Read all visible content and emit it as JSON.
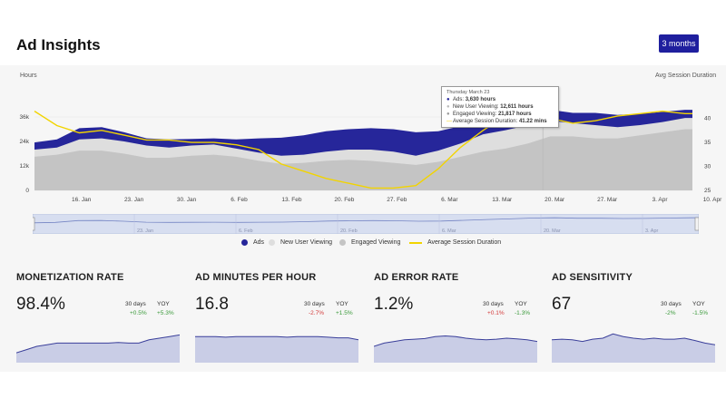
{
  "header": {
    "title": "Ad Insights",
    "range_button": "3 months"
  },
  "chart_data": {
    "type": "area",
    "ylabel_left": "Hours",
    "ylabel_right": "Avg Session Duration",
    "y_ticks_left": [
      "0",
      "12k",
      "24k",
      "36k"
    ],
    "y_ticks_right": [
      "25",
      "30",
      "35",
      "40"
    ],
    "ylim_left": [
      0,
      40000
    ],
    "ylim_right": [
      25,
      42
    ],
    "x_ticks": [
      "16. Jan",
      "23. Jan",
      "30. Jan",
      "6. Feb",
      "13. Feb",
      "20. Feb",
      "27. Feb",
      "6. Mar",
      "13. Mar",
      "20. Mar",
      "27. Mar",
      "3. Apr",
      "10. Apr"
    ],
    "x": [
      0,
      3,
      6,
      9,
      12,
      15,
      18,
      21,
      24,
      27,
      30,
      33,
      36,
      39,
      42,
      45,
      48,
      51,
      54,
      57,
      60,
      63,
      66,
      69,
      72,
      75,
      78,
      81,
      84,
      87,
      88
    ],
    "series": [
      {
        "name": "Ads",
        "color": "#26269a",
        "values": [
          23500,
          25000,
          30500,
          31000,
          28500,
          25500,
          25000,
          25200,
          25500,
          25000,
          25500,
          25800,
          27000,
          29000,
          30000,
          30500,
          30000,
          28500,
          29000,
          31500,
          34000,
          36000,
          38500,
          39500,
          38000,
          38000,
          37000,
          37500,
          38500,
          39500,
          39500
        ]
      },
      {
        "name": "New User Viewing",
        "color": "#dedede",
        "values": [
          20000,
          21000,
          25000,
          25500,
          24000,
          22000,
          21000,
          22000,
          22500,
          20500,
          18500,
          17000,
          17500,
          19000,
          20000,
          20000,
          19000,
          17000,
          19500,
          23000,
          27500,
          29500,
          32000,
          34000,
          33000,
          32000,
          31000,
          32000,
          33500,
          35500,
          35500
        ]
      },
      {
        "name": "Engaged Viewing",
        "color": "#c4c4c4",
        "values": [
          16500,
          17500,
          19500,
          19500,
          18000,
          16000,
          16000,
          17000,
          17500,
          16500,
          14500,
          13000,
          13500,
          14500,
          15000,
          14500,
          13500,
          12500,
          14000,
          16500,
          19000,
          20500,
          23000,
          26500,
          26500,
          25500,
          25500,
          27000,
          28500,
          30000,
          30000
        ]
      },
      {
        "name": "Average Session Duration",
        "color": "#f2d400",
        "values": [
          41.5,
          38.5,
          37.0,
          37.5,
          36.5,
          35.5,
          35.5,
          35.0,
          35.0,
          34.5,
          33.5,
          30.5,
          29.0,
          27.5,
          26.5,
          25.5,
          25.5,
          26.0,
          29.5,
          34.0,
          37.5,
          40.5,
          39.5,
          40.0,
          39.0,
          39.5,
          40.5,
          41.0,
          41.5,
          41.0,
          41.0
        ]
      }
    ],
    "legend": "bottom-center",
    "tooltip": {
      "date": "Thursday March 23",
      "rows": [
        {
          "symbol": "●",
          "label": "Ads:",
          "value": "3,630 hours"
        },
        {
          "symbol": "●",
          "label": "New User Viewing:",
          "value": "12,611 hours"
        },
        {
          "symbol": "●",
          "label": "Engaged Viewing:",
          "value": "21,817 hours"
        },
        {
          "symbol": "—",
          "label": "Average Session Duration:",
          "value": "41.22 mins"
        }
      ]
    },
    "navigator_ticks": [
      "23. Jan",
      "6. Feb",
      "20. Feb",
      "6. Mar",
      "20. Mar",
      "3. Apr"
    ]
  },
  "legend": {
    "items": [
      {
        "label": "Ads",
        "color": "#26269a",
        "kind": "dot"
      },
      {
        "label": "New User Viewing",
        "color": "#dedede",
        "kind": "dot"
      },
      {
        "label": "Engaged Viewing",
        "color": "#c4c4c4",
        "kind": "dot"
      },
      {
        "label": "Average Session Duration",
        "color": "#f2d400",
        "kind": "line"
      }
    ]
  },
  "metrics": [
    {
      "title": "MONETIZATION RATE",
      "value": "98.4%",
      "col1": "30 days",
      "col2": "YOY",
      "chg1": "+0.5%",
      "chg1_dir": "up",
      "chg2": "+5.3%",
      "chg2_dir": "up",
      "spark": [
        0.3,
        0.4,
        0.5,
        0.55,
        0.6,
        0.6,
        0.6,
        0.6,
        0.6,
        0.6,
        0.62,
        0.6,
        0.6,
        0.7,
        0.75,
        0.8,
        0.85
      ]
    },
    {
      "title": "AD MINUTES PER HOUR",
      "value": "16.8",
      "col1": "30 days",
      "col2": "YOY",
      "chg1": "-2.7%",
      "chg1_dir": "down",
      "chg2": "+1.5%",
      "chg2_dir": "up",
      "spark": [
        0.8,
        0.8,
        0.8,
        0.78,
        0.8,
        0.8,
        0.8,
        0.8,
        0.8,
        0.78,
        0.8,
        0.8,
        0.8,
        0.78,
        0.76,
        0.76,
        0.7
      ]
    },
    {
      "title": "AD ERROR RATE",
      "value": "1.2%",
      "col1": "30 days",
      "col2": "YOY",
      "chg1": "+0.1%",
      "chg1_dir": "down",
      "chg2": "-1.3%",
      "chg2_dir": "up",
      "spark": [
        0.5,
        0.6,
        0.65,
        0.7,
        0.72,
        0.74,
        0.8,
        0.82,
        0.8,
        0.75,
        0.72,
        0.7,
        0.72,
        0.75,
        0.73,
        0.7,
        0.65
      ]
    },
    {
      "title": "AD SENSITIVITY",
      "value": "67",
      "col1": "30 days",
      "col2": "YOY",
      "chg1": "-2%",
      "chg1_dir": "up",
      "chg2": "-1.5%",
      "chg2_dir": "up",
      "spark": [
        0.7,
        0.72,
        0.7,
        0.65,
        0.72,
        0.75,
        0.88,
        0.8,
        0.75,
        0.72,
        0.75,
        0.72,
        0.72,
        0.75,
        0.68,
        0.6,
        0.55
      ]
    }
  ]
}
